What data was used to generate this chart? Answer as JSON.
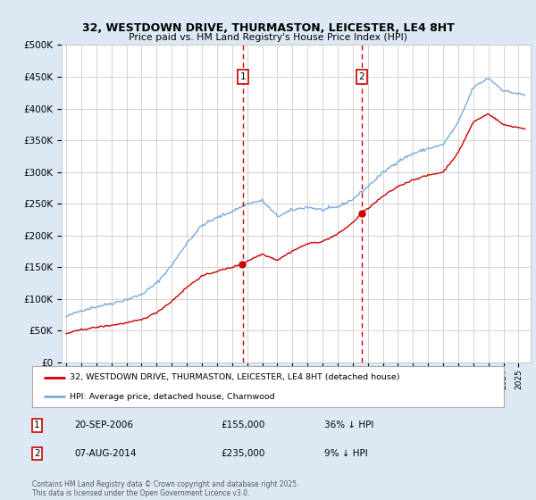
{
  "title1": "32, WESTDOWN DRIVE, THURMASTON, LEICESTER, LE4 8HT",
  "title2": "Price paid vs. HM Land Registry's House Price Index (HPI)",
  "ylim": [
    0,
    500000
  ],
  "yticks": [
    0,
    50000,
    100000,
    150000,
    200000,
    250000,
    300000,
    350000,
    400000,
    450000,
    500000
  ],
  "ytick_labels": [
    "£0",
    "£50K",
    "£100K",
    "£150K",
    "£200K",
    "£250K",
    "£300K",
    "£350K",
    "£400K",
    "£450K",
    "£500K"
  ],
  "xlim_start": 1994.7,
  "xlim_end": 2025.8,
  "vline1_x": 2006.72,
  "vline2_x": 2014.59,
  "marker1_price": 155000,
  "marker2_price": 235000,
  "sale1_label": "20-SEP-2006",
  "sale1_price": "£155,000",
  "sale1_hpi": "36% ↓ HPI",
  "sale2_label": "07-AUG-2014",
  "sale2_price": "£235,000",
  "sale2_hpi": "9% ↓ HPI",
  "legend_label_red": "32, WESTDOWN DRIVE, THURMASTON, LEICESTER, LE4 8HT (detached house)",
  "legend_label_blue": "HPI: Average price, detached house, Charnwood",
  "footer": "Contains HM Land Registry data © Crown copyright and database right 2025.\nThis data is licensed under the Open Government Licence v3.0.",
  "red_color": "#cc0000",
  "blue_color": "#7aabdb",
  "background_color": "#dce9f5",
  "plot_bg": "#ffffff",
  "grid_color": "#cccccc"
}
